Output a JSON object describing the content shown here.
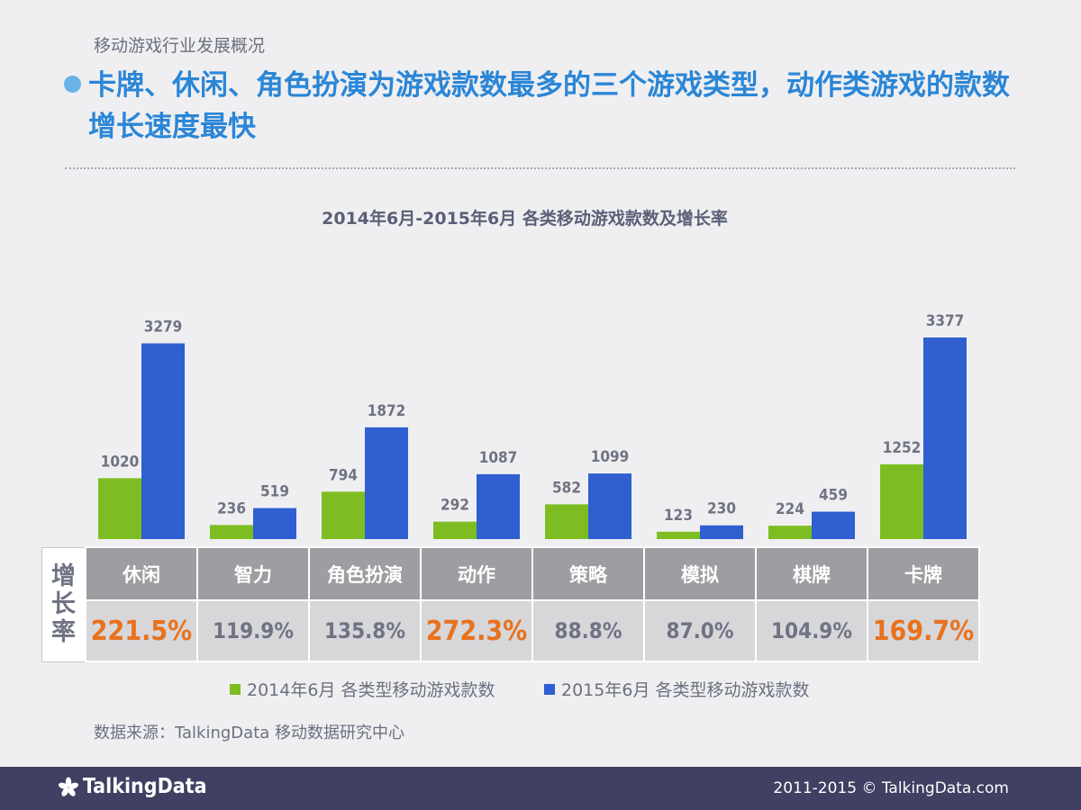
{
  "section_label": "移动游戏行业发展概况",
  "headline": "卡牌、休闲、角色扮演为游戏款数最多的三个游戏类型，动作类游戏的款数增长速度最快",
  "chart_data": {
    "type": "bar",
    "title": "2014年6月-2015年6月 各类移动游戏款数及增长率",
    "categories": [
      "休闲",
      "智力",
      "角色扮演",
      "动作",
      "策略",
      "模拟",
      "棋牌",
      "卡牌"
    ],
    "series": [
      {
        "name": "2014年6月 各类型移动游戏款数",
        "color": "#7ebd21",
        "values": [
          1020,
          236,
          794,
          292,
          582,
          123,
          224,
          1252
        ]
      },
      {
        "name": "2015年6月 各类型移动游戏款数",
        "color": "#2f5fd0",
        "values": [
          3279,
          519,
          1872,
          1087,
          1099,
          230,
          459,
          3377
        ]
      }
    ],
    "ylim": [
      0,
      3377
    ],
    "grid": false,
    "legend": "bottom"
  },
  "growth_table": {
    "row_label": [
      "增",
      "长",
      "率"
    ],
    "rates": [
      "221.5%",
      "119.9%",
      "135.8%",
      "272.3%",
      "88.8%",
      "87.0%",
      "104.9%",
      "169.7%"
    ],
    "highlighted": [
      true,
      false,
      false,
      true,
      false,
      false,
      false,
      true
    ],
    "highlight_color": "#e8721e"
  },
  "source": "数据来源：TalkingData 移动数据研究中心",
  "footer": {
    "logo": "TalkingData",
    "copyright": "2011-2015 © TalkingData.com"
  }
}
